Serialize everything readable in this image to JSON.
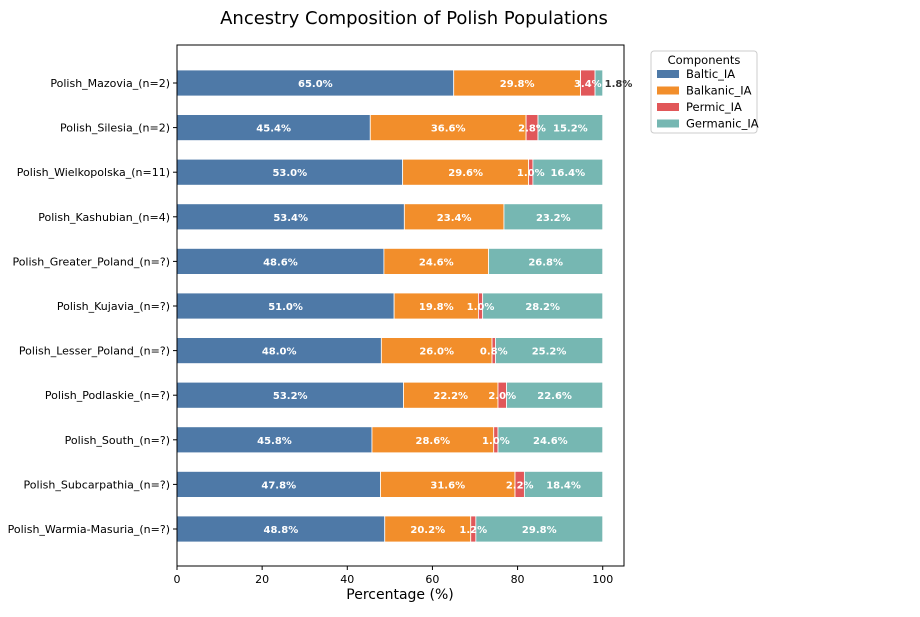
{
  "chart_data": {
    "type": "bar",
    "orientation": "horizontal",
    "stacked": true,
    "title": "Ancestry Composition of Polish Populations",
    "xlabel": "Percentage (%)",
    "ylabel": "",
    "xlim": [
      0,
      105
    ],
    "xticks": [
      0,
      20,
      40,
      60,
      80,
      100
    ],
    "grid": false,
    "legend": {
      "title": "Components",
      "placement": "outside-right"
    },
    "categories": [
      "Polish_Mazovia_(n=2)",
      "Polish_Silesia_(n=2)",
      "Polish_Wielkopolska_(n=11)",
      "Polish_Kashubian_(n=4)",
      "Polish_Greater_Poland_(n=?)",
      "Polish_Kujavia_(n=?)",
      "Polish_Lesser_Poland_(n=?)",
      "Polish_Podlaskie_(n=?)",
      "Polish_South_(n=?)",
      "Polish_Subcarpathia_(n=?)",
      "Polish_Warmia-Masuria_(n=?)"
    ],
    "series": [
      {
        "name": "Baltic_IA",
        "color": "#4e79a7",
        "values": [
          65.0,
          45.4,
          53.0,
          53.4,
          48.6,
          51.0,
          48.0,
          53.2,
          45.8,
          47.8,
          48.8
        ]
      },
      {
        "name": "Balkanic_IA",
        "color": "#f28e2b",
        "values": [
          29.8,
          36.6,
          29.6,
          23.4,
          24.6,
          19.8,
          26.0,
          22.2,
          28.6,
          31.6,
          20.2
        ]
      },
      {
        "name": "Permic_IA",
        "color": "#e15759",
        "values": [
          3.4,
          2.8,
          1.0,
          0,
          0,
          1.0,
          0.8,
          2.0,
          1.0,
          2.2,
          1.2
        ]
      },
      {
        "name": "Germanic_IA",
        "color": "#76b7b2",
        "values": [
          1.8,
          15.2,
          16.4,
          23.2,
          26.8,
          28.2,
          25.2,
          22.6,
          24.6,
          18.4,
          29.8
        ]
      }
    ]
  }
}
